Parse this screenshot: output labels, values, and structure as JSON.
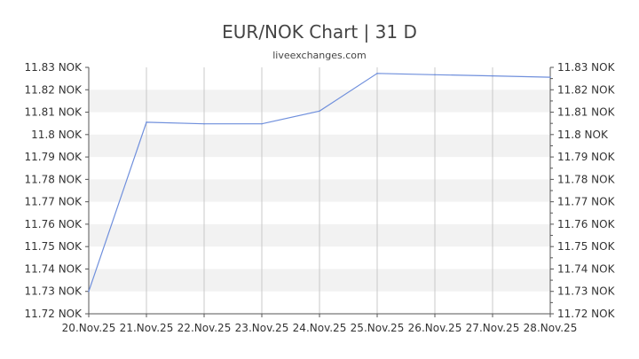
{
  "header": {
    "title": "EUR/NOK Chart | 31 D",
    "subtitle": "liveexchanges.com"
  },
  "chart_data": {
    "type": "line",
    "title": "EUR/NOK Chart | 31 D",
    "subtitle": "liveexchanges.com",
    "x": [
      "20.Nov.25",
      "21.Nov.25",
      "22.Nov.25",
      "23.Nov.25",
      "24.Nov.25",
      "25.Nov.25",
      "26.Nov.25",
      "27.Nov.25",
      "28.Nov.25"
    ],
    "series": [
      {
        "values": [
          11.73,
          11.8055,
          11.8048,
          11.8048,
          11.8105,
          11.8273,
          11.8267,
          11.8262,
          11.8256
        ],
        "color": "#6f8fdc"
      }
    ],
    "ylim": [
      11.72,
      11.83
    ],
    "yticks": [
      "11.72 NOK",
      "11.73 NOK",
      "11.74 NOK",
      "11.75 NOK",
      "11.76 NOK",
      "11.77 NOK",
      "11.78 NOK",
      "11.79 NOK",
      "11.8 NOK",
      "11.81 NOK",
      "11.82 NOK",
      "11.83 NOK"
    ],
    "ytick_values": [
      11.72,
      11.73,
      11.74,
      11.75,
      11.76,
      11.77,
      11.78,
      11.79,
      11.8,
      11.81,
      11.82,
      11.83
    ],
    "xlabel": "",
    "ylabel": "",
    "grid": true,
    "legend": "none",
    "colors": {
      "band": "#f2f2f2",
      "grid": "#c8c8c8",
      "axis": "#555555",
      "line": "#6f8fdc"
    }
  }
}
